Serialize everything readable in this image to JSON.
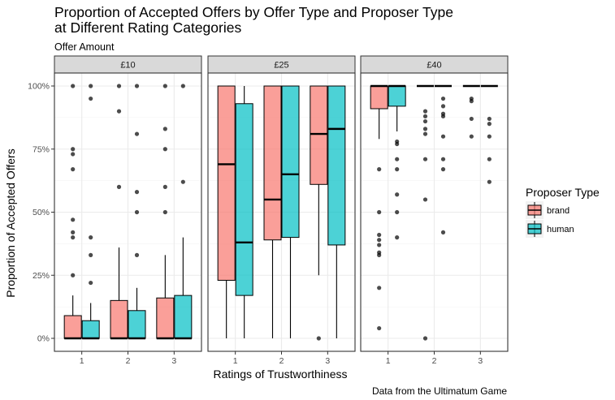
{
  "chart_data": {
    "type": "boxplot",
    "title_line1": "Proportion of Accepted Offers by Offer Type and Proposer Type",
    "title_line2": "at Different Rating Categories",
    "subtitle": "Offer Amount",
    "xlabel": "Ratings of Trustworthiness",
    "ylabel": "Proportion of Accepted Offers",
    "caption": "Data from the Ultimatum Game",
    "ylim": [
      0,
      1
    ],
    "y_ticks": [
      {
        "value": 0,
        "label": "0%"
      },
      {
        "value": 0.25,
        "label": "25%"
      },
      {
        "value": 0.5,
        "label": "50%"
      },
      {
        "value": 0.75,
        "label": "75%"
      },
      {
        "value": 1,
        "label": "100%"
      }
    ],
    "categories": [
      "1",
      "2",
      "3"
    ],
    "legend": {
      "title": "Proposer Type",
      "position": "right",
      "items": [
        {
          "name": "brand",
          "color": "#F8766D"
        },
        {
          "name": "human",
          "color": "#00BFC4"
        }
      ]
    },
    "grid": true,
    "facets": [
      {
        "label": "£10",
        "groups": [
          {
            "category": "1",
            "series": "brand",
            "lower": 0,
            "q1": 0,
            "median": 0,
            "q3": 0.09,
            "upper": 0.17,
            "outliers": [
              0.25,
              0.4,
              0.42,
              0.47,
              0.67,
              0.73,
              0.75,
              1.0
            ]
          },
          {
            "category": "1",
            "series": "human",
            "lower": 0,
            "q1": 0,
            "median": 0,
            "q3": 0.07,
            "upper": 0.14,
            "outliers": [
              0.22,
              0.33,
              0.4,
              0.95,
              1.0
            ]
          },
          {
            "category": "2",
            "series": "brand",
            "lower": 0,
            "q1": 0,
            "median": 0,
            "q3": 0.15,
            "upper": 0.36,
            "outliers": [
              0.6,
              0.9,
              1.0
            ]
          },
          {
            "category": "2",
            "series": "human",
            "lower": 0,
            "q1": 0,
            "median": 0,
            "q3": 0.11,
            "upper": 0.2,
            "outliers": [
              0.33,
              0.5,
              0.58,
              0.81,
              1.0
            ]
          },
          {
            "category": "3",
            "series": "brand",
            "lower": 0,
            "q1": 0,
            "median": 0,
            "q3": 0.16,
            "upper": 0.33,
            "outliers": [
              0.5,
              0.6,
              0.75,
              0.83,
              1.0
            ]
          },
          {
            "category": "3",
            "series": "human",
            "lower": 0,
            "q1": 0,
            "median": 0,
            "q3": 0.17,
            "upper": 0.4,
            "outliers": [
              0.62,
              1.0
            ]
          }
        ]
      },
      {
        "label": "£25",
        "groups": [
          {
            "category": "1",
            "series": "brand",
            "lower": 0,
            "q1": 0.23,
            "median": 0.69,
            "q3": 1.0,
            "upper": 1.0,
            "outliers": []
          },
          {
            "category": "1",
            "series": "human",
            "lower": 0,
            "q1": 0.17,
            "median": 0.38,
            "q3": 0.93,
            "upper": 1.0,
            "outliers": []
          },
          {
            "category": "2",
            "series": "brand",
            "lower": 0,
            "q1": 0.39,
            "median": 0.55,
            "q3": 1.0,
            "upper": 1.0,
            "outliers": []
          },
          {
            "category": "2",
            "series": "human",
            "lower": 0,
            "q1": 0.4,
            "median": 0.65,
            "q3": 1.0,
            "upper": 1.0,
            "outliers": []
          },
          {
            "category": "3",
            "series": "brand",
            "lower": 0.25,
            "q1": 0.61,
            "median": 0.81,
            "q3": 1.0,
            "upper": 1.0,
            "outliers": [
              0
            ]
          },
          {
            "category": "3",
            "series": "human",
            "lower": 0,
            "q1": 0.37,
            "median": 0.83,
            "q3": 1.0,
            "upper": 1.0,
            "outliers": []
          }
        ]
      },
      {
        "label": "£40",
        "groups": [
          {
            "category": "1",
            "series": "brand",
            "lower": 0.79,
            "q1": 0.91,
            "median": 1.0,
            "q3": 1.0,
            "upper": 1.0,
            "outliers": [
              0.04,
              0.2,
              0.33,
              0.34,
              0.37,
              0.39,
              0.41,
              0.5,
              0.67
            ]
          },
          {
            "category": "1",
            "series": "human",
            "lower": 0.82,
            "q1": 0.92,
            "median": 1.0,
            "q3": 1.0,
            "upper": 1.0,
            "outliers": [
              0.4,
              0.5,
              0.57,
              0.67,
              0.71,
              0.77,
              0.78
            ]
          },
          {
            "category": "2",
            "series": "brand",
            "lower": 1.0,
            "q1": 1.0,
            "median": 1.0,
            "q3": 1.0,
            "upper": 1.0,
            "outliers": [
              0,
              0.55,
              0.71,
              0.81,
              0.83,
              0.86,
              0.88,
              0.9
            ]
          },
          {
            "category": "2",
            "series": "human",
            "lower": 1.0,
            "q1": 1.0,
            "median": 1.0,
            "q3": 1.0,
            "upper": 1.0,
            "outliers": [
              0.42,
              0.67,
              0.71,
              0.8,
              0.88,
              0.89,
              0.92,
              0.95
            ]
          },
          {
            "category": "3",
            "series": "brand",
            "lower": 1.0,
            "q1": 1.0,
            "median": 1.0,
            "q3": 1.0,
            "upper": 1.0,
            "outliers": [
              0.8,
              0.87,
              0.94,
              0.95
            ]
          },
          {
            "category": "3",
            "series": "human",
            "lower": 1.0,
            "q1": 1.0,
            "median": 1.0,
            "q3": 1.0,
            "upper": 1.0,
            "outliers": [
              0.62,
              0.71,
              0.8,
              0.85,
              0.87
            ]
          }
        ]
      }
    ]
  }
}
